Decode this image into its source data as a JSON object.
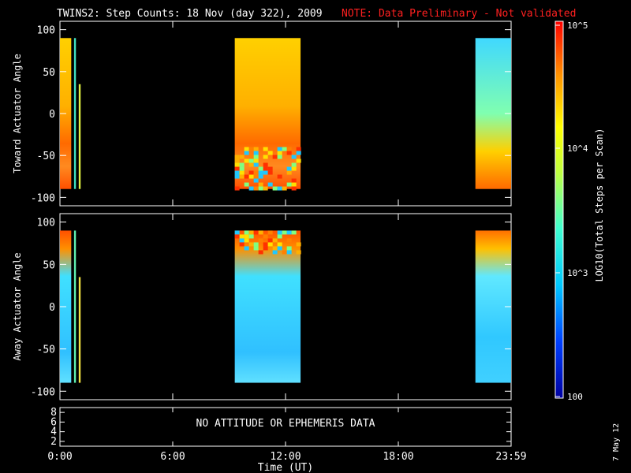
{
  "title": "TWINS2: Step Counts: 18 Nov (day 322), 2009",
  "note": "NOTE: Data Preliminary - Not validated",
  "date_stamp": "7 May 12",
  "no_data_message": "NO ATTITUDE OR EPHEMERIS DATA",
  "colorbar": {
    "label": "LOG10(Total Steps per Scan)",
    "ticks": [
      "10^5",
      "10^4",
      "10^3",
      "100"
    ]
  },
  "colors": {
    "note": "#ff2020",
    "frame": "#ffffff",
    "background": "#000000"
  },
  "chart_data": [
    {
      "type": "heatmap",
      "panel": "top",
      "ylabel": "Toward Actuator Angle",
      "ylim": [
        -110,
        110
      ],
      "yticks": [
        "100",
        "50",
        "0",
        "-50",
        "-100"
      ],
      "xlim_hours": [
        0,
        24
      ],
      "xticks": [
        "0:00",
        "6:00",
        "12:00",
        "18:00",
        "23:59"
      ],
      "data_blocks_hours": [
        [
          0.0,
          0.6
        ],
        [
          0.75,
          0.85
        ],
        [
          1.0,
          1.1
        ],
        [
          9.3,
          12.8
        ],
        [
          22.1,
          24.0
        ]
      ]
    },
    {
      "type": "heatmap",
      "panel": "middle",
      "ylabel": "Away Actuator Angle",
      "ylim": [
        -110,
        110
      ],
      "yticks": [
        "100",
        "50",
        "0",
        "-50",
        "-100"
      ],
      "xlim_hours": [
        0,
        24
      ],
      "xticks": [
        "0:00",
        "6:00",
        "12:00",
        "18:00",
        "23:59"
      ],
      "data_blocks_hours": [
        [
          0.0,
          0.6
        ],
        [
          0.75,
          0.85
        ],
        [
          1.0,
          1.1
        ],
        [
          9.3,
          12.8
        ],
        [
          22.1,
          24.0
        ]
      ]
    },
    {
      "type": "line",
      "panel": "bottom",
      "yticks": [
        "8",
        "6",
        "4",
        "2"
      ],
      "xlabel": "Time (UT)",
      "xticks": [
        "0:00",
        "6:00",
        "12:00",
        "18:00",
        "23:59"
      ]
    }
  ]
}
